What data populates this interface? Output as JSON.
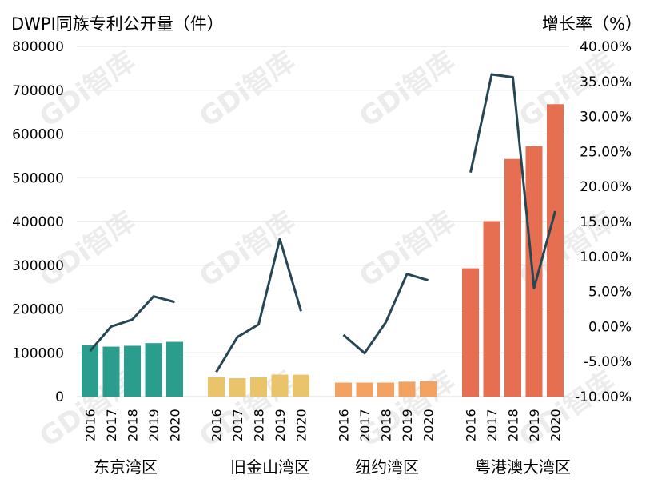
{
  "titles": {
    "left": "DWPI同族专利公开量（件）",
    "right": "增长率（%）"
  },
  "watermark": "GDi智库",
  "colors": {
    "bar": [
      "#2a9d8f",
      "#e9c46a",
      "#f4a261",
      "#e76f51"
    ],
    "line": "#264653",
    "grid": "#d9d9d9"
  },
  "chart_data": {
    "type": "bar",
    "title": "",
    "ylabel": "DWPI同族专利公开量（件）",
    "y2label": "增长率（%）",
    "ylim": [
      0,
      800000
    ],
    "y2lim": [
      -10,
      40
    ],
    "y_ticks": [
      "0",
      "100000",
      "200000",
      "300000",
      "400000",
      "500000",
      "600000",
      "700000",
      "800000"
    ],
    "y2_ticks": [
      "-10.00%",
      "-5.00%",
      "0.00%",
      "5.00%",
      "10.00%",
      "15.00%",
      "20.00%",
      "25.00%",
      "30.00%",
      "35.00%",
      "40.00%"
    ],
    "grid": true,
    "legend": "none",
    "groups": [
      {
        "name": "东京湾区",
        "years": [
          "2016",
          "2017",
          "2018",
          "2019",
          "2020"
        ],
        "publications": [
          117000,
          114000,
          116000,
          122000,
          125000
        ],
        "growth_rate": [
          -3.5,
          0.0,
          1.0,
          4.3,
          3.5
        ]
      },
      {
        "name": "旧金山湾区",
        "years": [
          "2016",
          "2017",
          "2018",
          "2019",
          "2020"
        ],
        "publications": [
          44000,
          42000,
          44000,
          50000,
          50000
        ],
        "growth_rate": [
          -6.5,
          -1.5,
          0.3,
          12.5,
          2.2
        ]
      },
      {
        "name": "纽约湾区",
        "years": [
          "2016",
          "2017",
          "2018",
          "2019",
          "2020"
        ],
        "publications": [
          32000,
          32000,
          32000,
          34000,
          35000
        ],
        "growth_rate": [
          -1.2,
          -3.8,
          0.6,
          7.5,
          6.6
        ]
      },
      {
        "name": "粤港澳大湾区",
        "years": [
          "2016",
          "2017",
          "2018",
          "2019",
          "2020"
        ],
        "publications": [
          293000,
          401000,
          543000,
          572000,
          668000
        ],
        "growth_rate": [
          22.0,
          36.0,
          35.6,
          5.5,
          16.5
        ]
      }
    ]
  }
}
